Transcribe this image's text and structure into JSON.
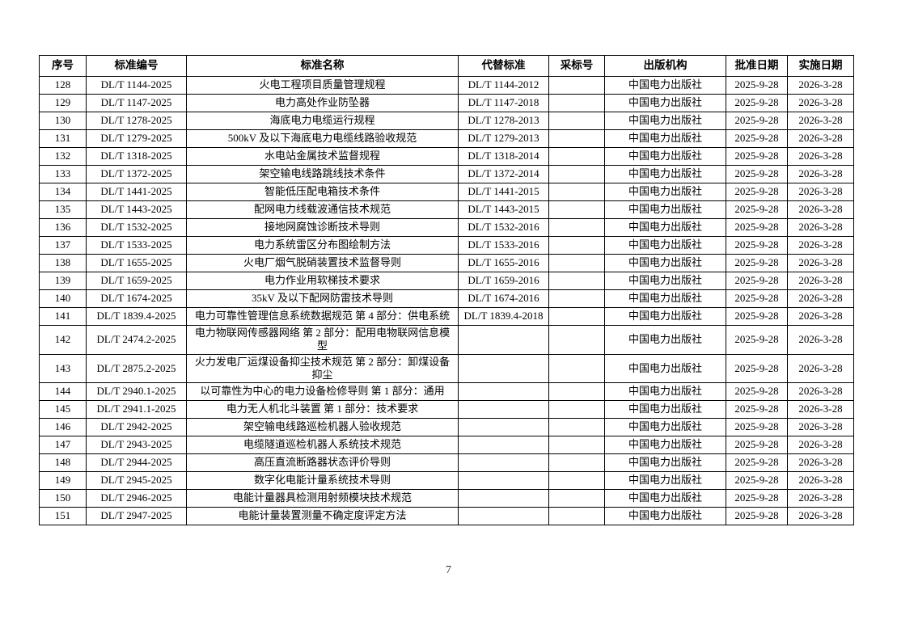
{
  "page_number": "7",
  "table": {
    "headers": {
      "no": "序号",
      "std_code": "标准编号",
      "std_name": "标准名称",
      "replaced_std": "代替标准",
      "adopted_no": "采标号",
      "publisher": "出版机构",
      "approval_date": "批准日期",
      "effective_date": "实施日期"
    },
    "rows": [
      {
        "no": "128",
        "std_code": "DL/T 1144-2025",
        "std_name": "火电工程项目质量管理规程",
        "replaced_std": "DL/T 1144-2012",
        "adopted_no": "",
        "publisher": "中国电力出版社",
        "approval_date": "2025-9-28",
        "effective_date": "2026-3-28"
      },
      {
        "no": "129",
        "std_code": "DL/T 1147-2025",
        "std_name": "电力高处作业防坠器",
        "replaced_std": "DL/T 1147-2018",
        "adopted_no": "",
        "publisher": "中国电力出版社",
        "approval_date": "2025-9-28",
        "effective_date": "2026-3-28"
      },
      {
        "no": "130",
        "std_code": "DL/T 1278-2025",
        "std_name": "海底电力电缆运行规程",
        "replaced_std": "DL/T 1278-2013",
        "adopted_no": "",
        "publisher": "中国电力出版社",
        "approval_date": "2025-9-28",
        "effective_date": "2026-3-28"
      },
      {
        "no": "131",
        "std_code": "DL/T 1279-2025",
        "std_name": "500kV 及以下海底电力电缆线路验收规范",
        "replaced_std": "DL/T 1279-2013",
        "adopted_no": "",
        "publisher": "中国电力出版社",
        "approval_date": "2025-9-28",
        "effective_date": "2026-3-28"
      },
      {
        "no": "132",
        "std_code": "DL/T 1318-2025",
        "std_name": "水电站金属技术监督规程",
        "replaced_std": "DL/T 1318-2014",
        "adopted_no": "",
        "publisher": "中国电力出版社",
        "approval_date": "2025-9-28",
        "effective_date": "2026-3-28"
      },
      {
        "no": "133",
        "std_code": "DL/T 1372-2025",
        "std_name": "架空输电线路跳线技术条件",
        "replaced_std": "DL/T 1372-2014",
        "adopted_no": "",
        "publisher": "中国电力出版社",
        "approval_date": "2025-9-28",
        "effective_date": "2026-3-28"
      },
      {
        "no": "134",
        "std_code": "DL/T 1441-2025",
        "std_name": "智能低压配电箱技术条件",
        "replaced_std": "DL/T 1441-2015",
        "adopted_no": "",
        "publisher": "中国电力出版社",
        "approval_date": "2025-9-28",
        "effective_date": "2026-3-28"
      },
      {
        "no": "135",
        "std_code": "DL/T 1443-2025",
        "std_name": "配网电力线载波通信技术规范",
        "replaced_std": "DL/T 1443-2015",
        "adopted_no": "",
        "publisher": "中国电力出版社",
        "approval_date": "2025-9-28",
        "effective_date": "2026-3-28"
      },
      {
        "no": "136",
        "std_code": "DL/T 1532-2025",
        "std_name": "接地网腐蚀诊断技术导则",
        "replaced_std": "DL/T 1532-2016",
        "adopted_no": "",
        "publisher": "中国电力出版社",
        "approval_date": "2025-9-28",
        "effective_date": "2026-3-28"
      },
      {
        "no": "137",
        "std_code": "DL/T 1533-2025",
        "std_name": "电力系统雷区分布图绘制方法",
        "replaced_std": "DL/T 1533-2016",
        "adopted_no": "",
        "publisher": "中国电力出版社",
        "approval_date": "2025-9-28",
        "effective_date": "2026-3-28"
      },
      {
        "no": "138",
        "std_code": "DL/T 1655-2025",
        "std_name": "火电厂烟气脱硝装置技术监督导则",
        "replaced_std": "DL/T 1655-2016",
        "adopted_no": "",
        "publisher": "中国电力出版社",
        "approval_date": "2025-9-28",
        "effective_date": "2026-3-28"
      },
      {
        "no": "139",
        "std_code": "DL/T 1659-2025",
        "std_name": "电力作业用软梯技术要求",
        "replaced_std": "DL/T 1659-2016",
        "adopted_no": "",
        "publisher": "中国电力出版社",
        "approval_date": "2025-9-28",
        "effective_date": "2026-3-28"
      },
      {
        "no": "140",
        "std_code": "DL/T 1674-2025",
        "std_name": "35kV 及以下配网防雷技术导则",
        "replaced_std": "DL/T 1674-2016",
        "adopted_no": "",
        "publisher": "中国电力出版社",
        "approval_date": "2025-9-28",
        "effective_date": "2026-3-28"
      },
      {
        "no": "141",
        "std_code": "DL/T 1839.4-2025",
        "std_name": "电力可靠性管理信息系统数据规范 第 4 部分：供电系统",
        "replaced_std": "DL/T 1839.4-2018",
        "adopted_no": "",
        "publisher": "中国电力出版社",
        "approval_date": "2025-9-28",
        "effective_date": "2026-3-28"
      },
      {
        "no": "142",
        "std_code": "DL/T 2474.2-2025",
        "std_name": "电力物联网传感器网络 第 2 部分：配用电物联网信息模型",
        "replaced_std": "",
        "adopted_no": "",
        "publisher": "中国电力出版社",
        "approval_date": "2025-9-28",
        "effective_date": "2026-3-28"
      },
      {
        "no": "143",
        "std_code": "DL/T 2875.2-2025",
        "std_name": "火力发电厂运煤设备抑尘技术规范 第 2 部分：卸煤设备抑尘",
        "replaced_std": "",
        "adopted_no": "",
        "publisher": "中国电力出版社",
        "approval_date": "2025-9-28",
        "effective_date": "2026-3-28"
      },
      {
        "no": "144",
        "std_code": "DL/T 2940.1-2025",
        "std_name": "以可靠性为中心的电力设备检修导则 第 1 部分：通用",
        "replaced_std": "",
        "adopted_no": "",
        "publisher": "中国电力出版社",
        "approval_date": "2025-9-28",
        "effective_date": "2026-3-28"
      },
      {
        "no": "145",
        "std_code": "DL/T 2941.1-2025",
        "std_name": "电力无人机北斗装置 第 1 部分：技术要求",
        "replaced_std": "",
        "adopted_no": "",
        "publisher": "中国电力出版社",
        "approval_date": "2025-9-28",
        "effective_date": "2026-3-28"
      },
      {
        "no": "146",
        "std_code": "DL/T 2942-2025",
        "std_name": "架空输电线路巡检机器人验收规范",
        "replaced_std": "",
        "adopted_no": "",
        "publisher": "中国电力出版社",
        "approval_date": "2025-9-28",
        "effective_date": "2026-3-28"
      },
      {
        "no": "147",
        "std_code": "DL/T 2943-2025",
        "std_name": "电缆隧道巡检机器人系统技术规范",
        "replaced_std": "",
        "adopted_no": "",
        "publisher": "中国电力出版社",
        "approval_date": "2025-9-28",
        "effective_date": "2026-3-28"
      },
      {
        "no": "148",
        "std_code": "DL/T 2944-2025",
        "std_name": "高压直流断路器状态评价导则",
        "replaced_std": "",
        "adopted_no": "",
        "publisher": "中国电力出版社",
        "approval_date": "2025-9-28",
        "effective_date": "2026-3-28"
      },
      {
        "no": "149",
        "std_code": "DL/T 2945-2025",
        "std_name": "数字化电能计量系统技术导则",
        "replaced_std": "",
        "adopted_no": "",
        "publisher": "中国电力出版社",
        "approval_date": "2025-9-28",
        "effective_date": "2026-3-28"
      },
      {
        "no": "150",
        "std_code": "DL/T 2946-2025",
        "std_name": "电能计量器具检测用射频模块技术规范",
        "replaced_std": "",
        "adopted_no": "",
        "publisher": "中国电力出版社",
        "approval_date": "2025-9-28",
        "effective_date": "2026-3-28"
      },
      {
        "no": "151",
        "std_code": "DL/T 2947-2025",
        "std_name": "电能计量装置测量不确定度评定方法",
        "replaced_std": "",
        "adopted_no": "",
        "publisher": "中国电力出版社",
        "approval_date": "2025-9-28",
        "effective_date": "2026-3-28"
      }
    ]
  }
}
